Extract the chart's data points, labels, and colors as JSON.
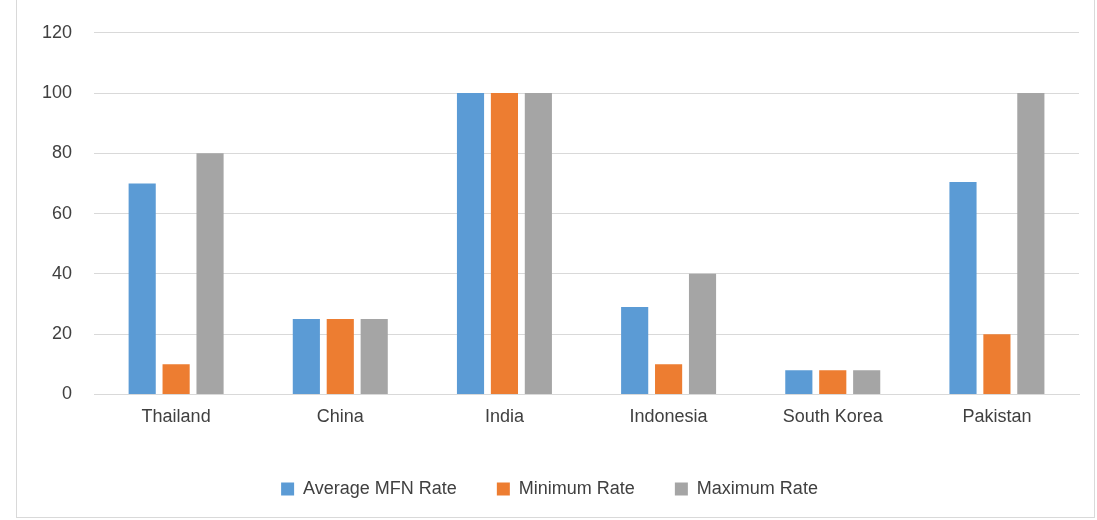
{
  "chart_data": {
    "type": "bar",
    "categories": [
      "Thailand",
      "China",
      "India",
      "Indonesia",
      "South Korea",
      "Pakistan"
    ],
    "series": [
      {
        "name": "Average MFN Rate",
        "color": "#5b9bd5",
        "values": [
          70,
          25,
          100,
          29,
          8,
          70.5
        ]
      },
      {
        "name": "Minimum Rate",
        "color": "#ed7d31",
        "values": [
          10,
          25,
          100,
          10,
          8,
          20
        ]
      },
      {
        "name": "Maximum Rate",
        "color": "#a5a5a5",
        "values": [
          80,
          25,
          100,
          40,
          8,
          100
        ]
      }
    ],
    "ylim": [
      0,
      120
    ],
    "yticks": [
      0,
      20,
      40,
      60,
      80,
      100,
      120
    ],
    "grid": "y",
    "legend": "bottom"
  }
}
